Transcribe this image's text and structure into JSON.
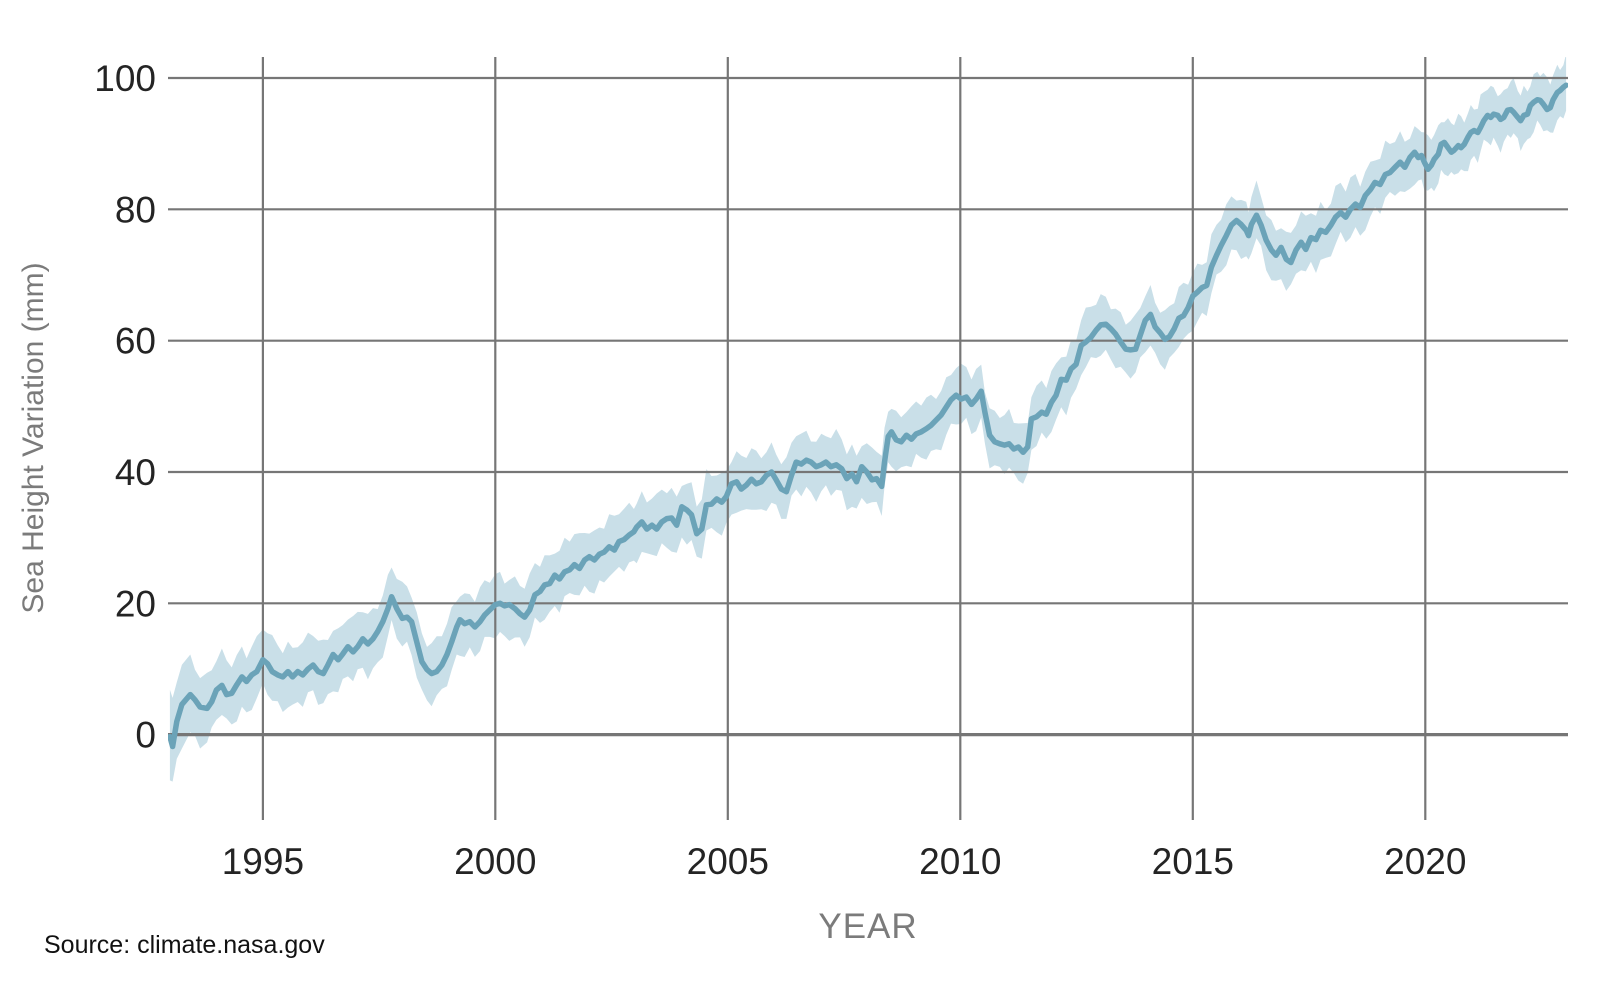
{
  "page": {
    "background": "#ffffff"
  },
  "source_note": "Source: climate.nasa.gov",
  "chart_data": {
    "type": "line",
    "title": "",
    "xlabel": "YEAR",
    "ylabel": "Sea Height Variation (mm)",
    "grid": true,
    "grid_color": "#767676",
    "tick_label_color": "#242424",
    "axis_title_color": "#7b7b7b",
    "x_ticks": [
      1995,
      2000,
      2005,
      2010,
      2015,
      2020
    ],
    "y_ticks": [
      0,
      20,
      40,
      60,
      80,
      100
    ],
    "xlim": [
      1992.96,
      2023.07
    ],
    "ylim": [
      -13,
      103.2
    ],
    "series": [
      {
        "name": "sea-height-variation",
        "color": "#6ba3b8",
        "band_color": "#c9dfe8",
        "band_halfwidth_anchors": [
          [
            1993.0,
            6.5
          ],
          [
            1994.0,
            4.6
          ],
          [
            2005.0,
            4.3
          ],
          [
            2023.05,
            4.0
          ]
        ],
        "points": [
          [
            1993.0,
            -0.3
          ],
          [
            1993.06,
            -1.8
          ],
          [
            1993.15,
            2.0
          ],
          [
            1993.26,
            4.6
          ],
          [
            1993.44,
            6.1
          ],
          [
            1993.54,
            5.3
          ],
          [
            1993.65,
            4.2
          ],
          [
            1993.8,
            4.0
          ],
          [
            1993.9,
            5.0
          ],
          [
            1994.0,
            6.8
          ],
          [
            1994.12,
            7.5
          ],
          [
            1994.22,
            6.1
          ],
          [
            1994.33,
            6.3
          ],
          [
            1994.44,
            7.6
          ],
          [
            1994.55,
            8.8
          ],
          [
            1994.65,
            8.1
          ],
          [
            1994.76,
            9.1
          ],
          [
            1994.87,
            9.6
          ],
          [
            1995.0,
            11.4
          ],
          [
            1995.1,
            10.8
          ],
          [
            1995.2,
            9.6
          ],
          [
            1995.32,
            9.1
          ],
          [
            1995.43,
            8.8
          ],
          [
            1995.54,
            9.6
          ],
          [
            1995.64,
            8.8
          ],
          [
            1995.75,
            9.6
          ],
          [
            1995.86,
            9.1
          ],
          [
            1995.97,
            10.0
          ],
          [
            1996.08,
            10.6
          ],
          [
            1996.19,
            9.6
          ],
          [
            1996.3,
            9.3
          ],
          [
            1996.4,
            10.6
          ],
          [
            1996.51,
            12.2
          ],
          [
            1996.62,
            11.4
          ],
          [
            1996.72,
            12.3
          ],
          [
            1996.83,
            13.4
          ],
          [
            1996.94,
            12.6
          ],
          [
            1997.04,
            13.4
          ],
          [
            1997.15,
            14.6
          ],
          [
            1997.26,
            13.8
          ],
          [
            1997.37,
            14.6
          ],
          [
            1997.47,
            15.7
          ],
          [
            1997.58,
            17.2
          ],
          [
            1997.69,
            19.2
          ],
          [
            1997.77,
            21.0
          ],
          [
            1997.88,
            19.2
          ],
          [
            1998.0,
            17.7
          ],
          [
            1998.1,
            17.9
          ],
          [
            1998.2,
            17.2
          ],
          [
            1998.31,
            14.1
          ],
          [
            1998.42,
            11.1
          ],
          [
            1998.53,
            9.9
          ],
          [
            1998.63,
            9.3
          ],
          [
            1998.74,
            9.6
          ],
          [
            1998.85,
            10.6
          ],
          [
            1998.96,
            12.2
          ],
          [
            1999.06,
            14.1
          ],
          [
            1999.17,
            16.4
          ],
          [
            1999.24,
            17.5
          ],
          [
            1999.34,
            16.9
          ],
          [
            1999.45,
            17.2
          ],
          [
            1999.56,
            16.4
          ],
          [
            1999.67,
            17.2
          ],
          [
            1999.77,
            18.2
          ],
          [
            1999.88,
            19.0
          ],
          [
            2000.0,
            19.8
          ],
          [
            2000.1,
            20.0
          ],
          [
            2000.2,
            19.6
          ],
          [
            2000.3,
            19.8
          ],
          [
            2000.42,
            19.2
          ],
          [
            2000.53,
            18.4
          ],
          [
            2000.63,
            17.9
          ],
          [
            2000.74,
            19.0
          ],
          [
            2000.85,
            21.3
          ],
          [
            2000.96,
            21.8
          ],
          [
            2001.06,
            22.8
          ],
          [
            2001.17,
            23.0
          ],
          [
            2001.28,
            24.3
          ],
          [
            2001.38,
            23.7
          ],
          [
            2001.49,
            24.8
          ],
          [
            2001.6,
            25.1
          ],
          [
            2001.7,
            25.9
          ],
          [
            2001.81,
            25.3
          ],
          [
            2001.92,
            26.6
          ],
          [
            2002.02,
            27.1
          ],
          [
            2002.13,
            26.6
          ],
          [
            2002.24,
            27.5
          ],
          [
            2002.34,
            27.8
          ],
          [
            2002.45,
            28.6
          ],
          [
            2002.56,
            28.1
          ],
          [
            2002.66,
            29.4
          ],
          [
            2002.77,
            29.7
          ],
          [
            2002.88,
            30.4
          ],
          [
            2002.98,
            30.9
          ],
          [
            2003.04,
            31.6
          ],
          [
            2003.15,
            32.4
          ],
          [
            2003.26,
            31.3
          ],
          [
            2003.37,
            31.9
          ],
          [
            2003.47,
            31.3
          ],
          [
            2003.58,
            32.4
          ],
          [
            2003.69,
            32.9
          ],
          [
            2003.79,
            33.0
          ],
          [
            2003.9,
            31.9
          ],
          [
            2004.01,
            34.7
          ],
          [
            2004.12,
            34.2
          ],
          [
            2004.22,
            33.5
          ],
          [
            2004.33,
            30.6
          ],
          [
            2004.44,
            31.3
          ],
          [
            2004.54,
            35.0
          ],
          [
            2004.65,
            35.1
          ],
          [
            2004.76,
            35.9
          ],
          [
            2004.87,
            35.4
          ],
          [
            2004.97,
            36.3
          ],
          [
            2005.08,
            38.2
          ],
          [
            2005.19,
            38.5
          ],
          [
            2005.29,
            37.4
          ],
          [
            2005.4,
            38.0
          ],
          [
            2005.51,
            38.9
          ],
          [
            2005.61,
            38.2
          ],
          [
            2005.72,
            38.5
          ],
          [
            2005.83,
            39.5
          ],
          [
            2005.94,
            40.0
          ],
          [
            2006.04,
            38.8
          ],
          [
            2006.15,
            37.4
          ],
          [
            2006.26,
            37.0
          ],
          [
            2006.37,
            39.5
          ],
          [
            2006.47,
            41.5
          ],
          [
            2006.58,
            41.2
          ],
          [
            2006.69,
            41.8
          ],
          [
            2006.79,
            41.5
          ],
          [
            2006.9,
            40.8
          ],
          [
            2007.01,
            41.1
          ],
          [
            2007.11,
            41.5
          ],
          [
            2007.22,
            40.8
          ],
          [
            2007.33,
            41.1
          ],
          [
            2007.45,
            40.5
          ],
          [
            2007.56,
            39.0
          ],
          [
            2007.67,
            39.7
          ],
          [
            2007.77,
            38.5
          ],
          [
            2007.88,
            40.8
          ],
          [
            2007.99,
            40.0
          ],
          [
            2008.1,
            38.8
          ],
          [
            2008.2,
            39.0
          ],
          [
            2008.31,
            37.8
          ],
          [
            2008.37,
            41.5
          ],
          [
            2008.45,
            45.4
          ],
          [
            2008.52,
            46.1
          ],
          [
            2008.62,
            44.9
          ],
          [
            2008.73,
            44.6
          ],
          [
            2008.84,
            45.6
          ],
          [
            2008.95,
            45.0
          ],
          [
            2009.05,
            45.8
          ],
          [
            2009.16,
            46.1
          ],
          [
            2009.27,
            46.6
          ],
          [
            2009.37,
            47.1
          ],
          [
            2009.48,
            47.9
          ],
          [
            2009.59,
            48.7
          ],
          [
            2009.7,
            49.9
          ],
          [
            2009.8,
            51.0
          ],
          [
            2009.91,
            51.7
          ],
          [
            2010.02,
            51.1
          ],
          [
            2010.13,
            51.4
          ],
          [
            2010.24,
            50.3
          ],
          [
            2010.34,
            51.1
          ],
          [
            2010.45,
            52.3
          ],
          [
            2010.53,
            49.1
          ],
          [
            2010.63,
            45.6
          ],
          [
            2010.74,
            44.6
          ],
          [
            2010.85,
            44.3
          ],
          [
            2010.95,
            44.1
          ],
          [
            2011.05,
            44.3
          ],
          [
            2011.15,
            43.5
          ],
          [
            2011.25,
            43.8
          ],
          [
            2011.35,
            43.0
          ],
          [
            2011.45,
            43.8
          ],
          [
            2011.53,
            48.1
          ],
          [
            2011.64,
            48.4
          ],
          [
            2011.75,
            49.1
          ],
          [
            2011.85,
            48.8
          ],
          [
            2011.96,
            50.6
          ],
          [
            2012.06,
            51.7
          ],
          [
            2012.17,
            54.1
          ],
          [
            2012.28,
            54.0
          ],
          [
            2012.38,
            55.7
          ],
          [
            2012.49,
            56.4
          ],
          [
            2012.6,
            59.3
          ],
          [
            2012.7,
            59.8
          ],
          [
            2012.81,
            60.5
          ],
          [
            2012.92,
            61.6
          ],
          [
            2013.02,
            62.4
          ],
          [
            2013.13,
            62.5
          ],
          [
            2013.24,
            61.8
          ],
          [
            2013.34,
            61.0
          ],
          [
            2013.45,
            59.8
          ],
          [
            2013.56,
            58.7
          ],
          [
            2013.66,
            58.6
          ],
          [
            2013.77,
            58.7
          ],
          [
            2013.87,
            60.8
          ],
          [
            2013.98,
            63.1
          ],
          [
            2014.09,
            64.0
          ],
          [
            2014.19,
            62.1
          ],
          [
            2014.3,
            61.2
          ],
          [
            2014.4,
            60.2
          ],
          [
            2014.5,
            60.6
          ],
          [
            2014.6,
            61.8
          ],
          [
            2014.7,
            63.4
          ],
          [
            2014.8,
            63.8
          ],
          [
            2014.9,
            65.0
          ],
          [
            2015.0,
            66.8
          ],
          [
            2015.1,
            67.4
          ],
          [
            2015.2,
            68.1
          ],
          [
            2015.3,
            68.4
          ],
          [
            2015.4,
            71.2
          ],
          [
            2015.51,
            73.0
          ],
          [
            2015.61,
            74.5
          ],
          [
            2015.72,
            76.0
          ],
          [
            2015.83,
            77.6
          ],
          [
            2015.94,
            78.3
          ],
          [
            2016.04,
            77.7
          ],
          [
            2016.15,
            76.8
          ],
          [
            2016.2,
            76.0
          ],
          [
            2016.26,
            77.7
          ],
          [
            2016.37,
            79.1
          ],
          [
            2016.47,
            77.6
          ],
          [
            2016.58,
            75.3
          ],
          [
            2016.69,
            73.8
          ],
          [
            2016.79,
            73.0
          ],
          [
            2016.9,
            74.2
          ],
          [
            2017.01,
            72.4
          ],
          [
            2017.11,
            71.9
          ],
          [
            2017.22,
            73.8
          ],
          [
            2017.33,
            75.0
          ],
          [
            2017.43,
            73.9
          ],
          [
            2017.54,
            75.7
          ],
          [
            2017.65,
            75.4
          ],
          [
            2017.75,
            76.8
          ],
          [
            2017.86,
            76.5
          ],
          [
            2017.97,
            77.6
          ],
          [
            2018.07,
            78.8
          ],
          [
            2018.18,
            79.5
          ],
          [
            2018.29,
            78.8
          ],
          [
            2018.39,
            80.0
          ],
          [
            2018.5,
            80.8
          ],
          [
            2018.6,
            80.3
          ],
          [
            2018.71,
            82.1
          ],
          [
            2018.82,
            83.0
          ],
          [
            2018.92,
            84.1
          ],
          [
            2019.03,
            83.8
          ],
          [
            2019.14,
            85.3
          ],
          [
            2019.24,
            85.6
          ],
          [
            2019.35,
            86.4
          ],
          [
            2019.46,
            87.2
          ],
          [
            2019.56,
            86.4
          ],
          [
            2019.67,
            87.9
          ],
          [
            2019.77,
            88.7
          ],
          [
            2019.85,
            87.9
          ],
          [
            2019.92,
            88.2
          ],
          [
            2019.98,
            87.2
          ],
          [
            2020.06,
            86.1
          ],
          [
            2020.13,
            86.7
          ],
          [
            2020.19,
            87.6
          ],
          [
            2020.28,
            88.4
          ],
          [
            2020.34,
            89.9
          ],
          [
            2020.41,
            90.2
          ],
          [
            2020.49,
            89.4
          ],
          [
            2020.56,
            88.7
          ],
          [
            2020.62,
            89.0
          ],
          [
            2020.71,
            89.7
          ],
          [
            2020.77,
            89.4
          ],
          [
            2020.84,
            89.9
          ],
          [
            2020.92,
            91.0
          ],
          [
            2020.98,
            91.7
          ],
          [
            2021.05,
            92.0
          ],
          [
            2021.13,
            91.7
          ],
          [
            2021.19,
            92.5
          ],
          [
            2021.26,
            93.5
          ],
          [
            2021.34,
            94.3
          ],
          [
            2021.41,
            94.0
          ],
          [
            2021.47,
            94.5
          ],
          [
            2021.56,
            94.3
          ],
          [
            2021.62,
            93.7
          ],
          [
            2021.69,
            94.0
          ],
          [
            2021.77,
            95.1
          ],
          [
            2021.84,
            95.2
          ],
          [
            2021.9,
            94.8
          ],
          [
            2021.99,
            94.0
          ],
          [
            2022.05,
            93.5
          ],
          [
            2022.12,
            94.3
          ],
          [
            2022.2,
            94.5
          ],
          [
            2022.26,
            95.8
          ],
          [
            2022.33,
            96.3
          ],
          [
            2022.41,
            96.7
          ],
          [
            2022.47,
            96.6
          ],
          [
            2022.54,
            96.0
          ],
          [
            2022.62,
            95.2
          ],
          [
            2022.69,
            95.5
          ],
          [
            2022.75,
            96.7
          ],
          [
            2022.84,
            97.8
          ],
          [
            2022.9,
            98.1
          ],
          [
            2022.97,
            98.6
          ],
          [
            2023.03,
            98.9
          ]
        ]
      }
    ]
  }
}
